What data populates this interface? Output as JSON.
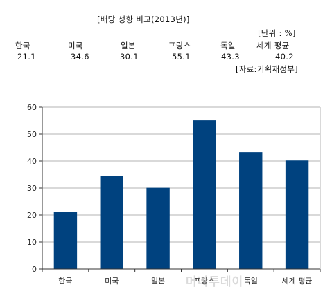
{
  "header": {
    "title": "[배당 성향 비교(2013년)]",
    "unit": "[단위 : %]",
    "source": "[자료:기획재정부]",
    "columns": [
      {
        "name": "한국",
        "value": "21.1"
      },
      {
        "name": "미국",
        "value": "34.6"
      },
      {
        "name": "일본",
        "value": "30.1"
      },
      {
        "name": "프랑스",
        "value": "55.1"
      },
      {
        "name": "독일",
        "value": "43.3"
      },
      {
        "name": "세계 평균",
        "value": "40.2"
      }
    ]
  },
  "watermark": "머니투데이",
  "chart_data": {
    "type": "bar",
    "categories": [
      "한국",
      "미국",
      "일본",
      "프랑스",
      "독일",
      "세계 평균"
    ],
    "values": [
      21.1,
      34.6,
      30.1,
      55.1,
      43.3,
      40.2
    ],
    "ylim": [
      0,
      60
    ],
    "yticks": [
      0,
      10,
      20,
      30,
      40,
      50,
      60
    ],
    "grid": true,
    "bar_color": "#00427F",
    "legend": "none"
  }
}
